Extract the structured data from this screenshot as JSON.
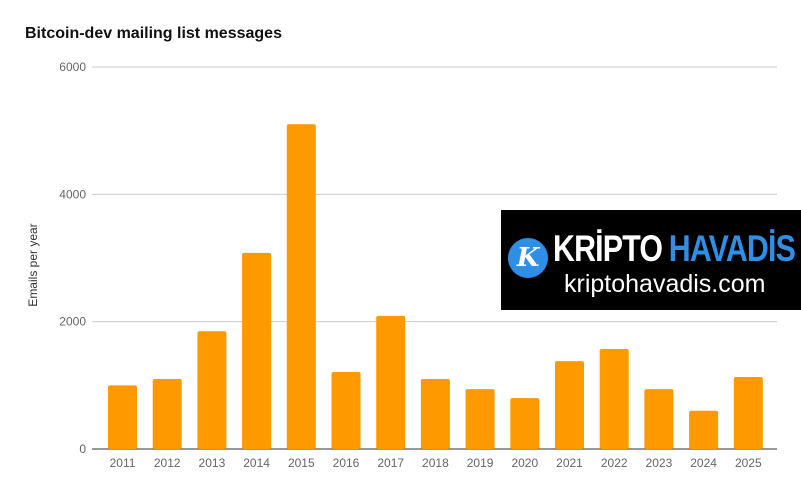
{
  "chart_data": {
    "type": "bar",
    "title": "Bitcoin-dev mailing list messages",
    "xlabel": "",
    "ylabel": "Emails per year",
    "ylim": [
      0,
      6000
    ],
    "yticks": [
      0,
      2000,
      4000,
      6000
    ],
    "grid": true,
    "color": "#ff9900",
    "categories": [
      "2011",
      "2012",
      "2013",
      "2014",
      "2015",
      "2016",
      "2017",
      "2018",
      "2019",
      "2020",
      "2021",
      "2022",
      "2023",
      "2024",
      "2025"
    ],
    "values": [
      1000,
      1100,
      1850,
      3080,
      5100,
      1210,
      2090,
      1100,
      940,
      800,
      1380,
      1570,
      940,
      600,
      1130
    ]
  },
  "watermark": {
    "brand_part1": "KRİPTO",
    "brand_part2": "HAVADİS",
    "url": "kriptohavadis.com",
    "logo_letter": "K",
    "accent": "#2f8ee5"
  }
}
